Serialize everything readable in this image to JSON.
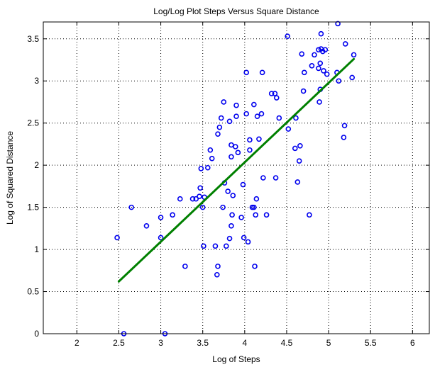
{
  "chart_data": {
    "type": "scatter",
    "title": "Log/Log Plot Steps Versus Square Distance",
    "xlabel": "Log of Steps",
    "ylabel": "Log of Squared Distance",
    "xlim": [
      1.6,
      6.2
    ],
    "ylim": [
      0,
      3.7
    ],
    "xticks": [
      2,
      2.5,
      3,
      3.5,
      4,
      4.5,
      5,
      5.5,
      6
    ],
    "xtick_labels": [
      "2",
      "2.5",
      "3",
      "3.5",
      "4",
      "4.5",
      "5",
      "5.5",
      "6"
    ],
    "yticks": [
      0,
      0.5,
      1,
      1.5,
      2,
      2.5,
      3,
      3.5
    ],
    "ytick_labels": [
      "0",
      "0.5",
      "1",
      "1.5",
      "2",
      "2.5",
      "3",
      "3.5"
    ],
    "grid": true,
    "series": [
      {
        "marker": "circle",
        "color": "#0000ee",
        "points": [
          [
            2.48,
            1.14
          ],
          [
            2.56,
            0.0
          ],
          [
            2.65,
            1.5
          ],
          [
            2.83,
            1.28
          ],
          [
            3.0,
            1.38
          ],
          [
            3.0,
            1.14
          ],
          [
            3.05,
            0.0
          ],
          [
            3.14,
            1.41
          ],
          [
            3.23,
            1.6
          ],
          [
            3.29,
            0.8
          ],
          [
            3.38,
            1.6
          ],
          [
            3.42,
            1.6
          ],
          [
            3.46,
            1.63
          ],
          [
            3.47,
            1.73
          ],
          [
            3.48,
            1.96
          ],
          [
            3.5,
            1.5
          ],
          [
            3.51,
            1.04
          ],
          [
            3.52,
            1.62
          ],
          [
            3.56,
            1.97
          ],
          [
            3.59,
            2.18
          ],
          [
            3.61,
            2.08
          ],
          [
            3.65,
            1.04
          ],
          [
            3.67,
            0.7
          ],
          [
            3.68,
            0.8
          ],
          [
            3.68,
            2.37
          ],
          [
            3.7,
            2.45
          ],
          [
            3.72,
            2.56
          ],
          [
            3.74,
            1.5
          ],
          [
            3.75,
            2.75
          ],
          [
            3.76,
            1.79
          ],
          [
            3.78,
            1.04
          ],
          [
            3.8,
            1.69
          ],
          [
            3.82,
            2.52
          ],
          [
            3.82,
            1.13
          ],
          [
            3.84,
            2.1
          ],
          [
            3.84,
            2.24
          ],
          [
            3.84,
            1.28
          ],
          [
            3.85,
            1.41
          ],
          [
            3.86,
            1.64
          ],
          [
            3.89,
            2.22
          ],
          [
            3.9,
            2.71
          ],
          [
            3.9,
            2.58
          ],
          [
            3.92,
            2.15
          ],
          [
            3.96,
            1.38
          ],
          [
            3.98,
            1.77
          ],
          [
            3.99,
            1.14
          ],
          [
            4.02,
            3.1
          ],
          [
            4.02,
            2.61
          ],
          [
            4.04,
            1.09
          ],
          [
            4.06,
            2.3
          ],
          [
            4.06,
            2.18
          ],
          [
            4.09,
            1.5
          ],
          [
            4.11,
            1.5
          ],
          [
            4.11,
            2.72
          ],
          [
            4.12,
            0.8
          ],
          [
            4.13,
            1.41
          ],
          [
            4.14,
            1.6
          ],
          [
            4.15,
            2.58
          ],
          [
            4.17,
            2.31
          ],
          [
            4.2,
            2.61
          ],
          [
            4.21,
            3.1
          ],
          [
            4.22,
            1.85
          ],
          [
            4.26,
            1.41
          ],
          [
            4.32,
            2.85
          ],
          [
            4.36,
            2.85
          ],
          [
            4.37,
            1.85
          ],
          [
            4.38,
            2.8
          ],
          [
            4.41,
            2.56
          ],
          [
            4.51,
            3.53
          ],
          [
            4.52,
            2.43
          ],
          [
            4.6,
            2.2
          ],
          [
            4.61,
            2.56
          ],
          [
            4.63,
            1.8
          ],
          [
            4.65,
            2.05
          ],
          [
            4.66,
            2.23
          ],
          [
            4.68,
            3.32
          ],
          [
            4.7,
            2.88
          ],
          [
            4.71,
            3.1
          ],
          [
            4.77,
            1.41
          ],
          [
            4.8,
            3.18
          ],
          [
            4.83,
            3.31
          ],
          [
            4.88,
            3.37
          ],
          [
            4.88,
            3.15
          ],
          [
            4.89,
            2.75
          ],
          [
            4.9,
            2.9
          ],
          [
            4.9,
            3.21
          ],
          [
            4.91,
            3.38
          ],
          [
            4.91,
            3.56
          ],
          [
            4.93,
            3.35
          ],
          [
            4.94,
            3.12
          ],
          [
            4.96,
            3.37
          ],
          [
            4.98,
            3.08
          ],
          [
            5.1,
            3.1
          ],
          [
            5.11,
            3.68
          ],
          [
            5.12,
            3.0
          ],
          [
            5.18,
            2.33
          ],
          [
            5.19,
            2.47
          ],
          [
            5.2,
            3.44
          ],
          [
            5.28,
            3.04
          ],
          [
            5.3,
            3.31
          ]
        ]
      },
      {
        "type": "line",
        "color": "#008000",
        "points": [
          [
            2.5,
            0.62
          ],
          [
            5.3,
            3.26
          ]
        ]
      }
    ]
  }
}
